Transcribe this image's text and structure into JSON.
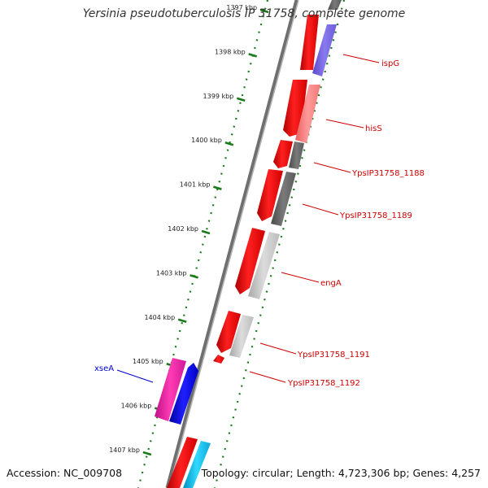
{
  "title": "Yersinia pseudotuberculosis IP 31758, complete genome",
  "footer": {
    "accession": "Accession: NC_009708",
    "summary": "Topology: circular; Length: 4,723,306 bp; Genes: 4,257"
  },
  "scale_labels": [
    "1397 kbp",
    "1398 kbp",
    "1399 kbp",
    "1400 kbp",
    "1401 kbp",
    "1402 kbp",
    "1403 kbp",
    "1404 kbp",
    "1405 kbp",
    "1406 kbp",
    "1407 kbp"
  ],
  "gene_labels": [
    {
      "text": "ispG",
      "color": "#cc0000"
    },
    {
      "text": "hisS",
      "color": "#cc0000"
    },
    {
      "text": "YpsIP31758_1188",
      "color": "#cc0000"
    },
    {
      "text": "YpsIP31758_1189",
      "color": "#cc0000"
    },
    {
      "text": "engA",
      "color": "#cc0000"
    },
    {
      "text": "YpsIP31758_1191",
      "color": "#cc0000"
    },
    {
      "text": "YpsIP31758_1192",
      "color": "#cc0000"
    },
    {
      "text": "xseA",
      "color": "#0000cc"
    }
  ],
  "colors": {
    "red": "#ff0000",
    "tick_green": "#1a7a1a",
    "backbone": "#808080"
  }
}
